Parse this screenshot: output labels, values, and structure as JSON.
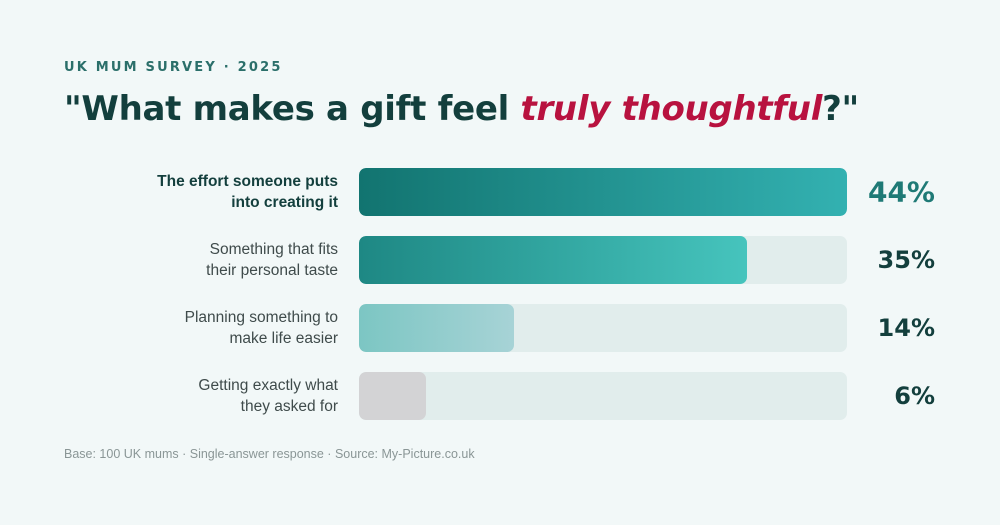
{
  "header": {
    "eyebrow": "UK MUM SURVEY · 2025",
    "title_prefix": "\"What makes a gift feel ",
    "title_emphasis": "truly thoughtful",
    "title_suffix": "?\""
  },
  "chart_data": {
    "type": "bar",
    "orientation": "horizontal",
    "categories": [
      "The effort someone puts into creating it",
      "Something that fits their personal taste",
      "Planning something to make life easier",
      "Getting exactly what they asked for"
    ],
    "category_lines": [
      [
        "The effort someone puts",
        "into creating it"
      ],
      [
        "Something that fits",
        "their personal taste"
      ],
      [
        "Planning something to",
        "make life easier"
      ],
      [
        "Getting exactly what",
        "they asked for"
      ]
    ],
    "values": [
      44,
      35,
      14,
      6
    ],
    "value_labels": [
      "44%",
      "35%",
      "14%",
      "6%"
    ],
    "xlim": [
      0,
      100
    ],
    "unit": "%",
    "grid": false,
    "legend": "none",
    "bar_colors": [
      [
        "#127470",
        "#33b1b1"
      ],
      [
        "#1e8884",
        "#46c4bd"
      ],
      [
        "#7cc6c3",
        "#a7d3d6"
      ],
      [
        "#d3d3d5",
        "#d3d3d5"
      ]
    ],
    "track_color": "#e1edec"
  },
  "footer": {
    "note": "Base: 100 UK mums · Single-answer response · Source: My-Picture.co.uk"
  }
}
